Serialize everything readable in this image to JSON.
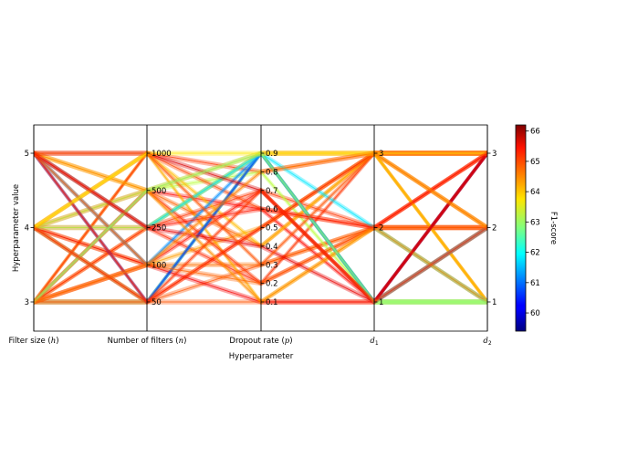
{
  "chart_data": {
    "type": "parallel-coordinates",
    "title": "",
    "xlabel": "Hyperparameter",
    "ylabel": "Hyperparameter value",
    "grid": false,
    "axes": [
      {
        "name": "Filter size (h)",
        "label_main": "Filter size (",
        "label_var": "h",
        "label_end": ")",
        "ticks": [
          "3",
          "4",
          "5"
        ],
        "tick_side": "left"
      },
      {
        "name": "Number of filters (n)",
        "label_main": "Number of filters (",
        "label_var": "n",
        "label_end": ")",
        "ticks": [
          "50",
          "100",
          "250",
          "500",
          "1000"
        ],
        "tick_side": "right"
      },
      {
        "name": "Dropout rate (p)",
        "label_main": "Dropout rate (",
        "label_var": "p",
        "label_end": ")",
        "ticks": [
          "0.1",
          "0.2",
          "0.3",
          "0.4",
          "0.5",
          "0.6",
          "0.7",
          "0.8",
          "0.9"
        ],
        "tick_side": "right"
      },
      {
        "name": "d1",
        "label_main": "",
        "label_var": "d",
        "label_sub": "1",
        "label_end": "",
        "ticks": [
          "1",
          "2",
          "3"
        ],
        "tick_side": "right"
      },
      {
        "name": "d2",
        "label_main": "",
        "label_var": "d",
        "label_sub": "2",
        "label_end": "",
        "ticks": [
          "1",
          "2",
          "3"
        ],
        "tick_side": "right"
      }
    ],
    "colorbar": {
      "label": "F1-score",
      "min": 59.4,
      "max": 66.2,
      "ticks": [
        "60",
        "61",
        "62",
        "63",
        "64",
        "65",
        "66"
      ],
      "colormap": "jet"
    },
    "representative_lines": [
      [
        3,
        50,
        0.1,
        1,
        1,
        64.8
      ],
      [
        3,
        50,
        0.9,
        1,
        1,
        62.8
      ],
      [
        3,
        50,
        0.5,
        3,
        3,
        64.9
      ],
      [
        3,
        100,
        0.3,
        2,
        2,
        64.6
      ],
      [
        3,
        100,
        0.7,
        1,
        3,
        65.2
      ],
      [
        3,
        250,
        0.9,
        3,
        1,
        64.4
      ],
      [
        3,
        250,
        0.2,
        2,
        3,
        65.1
      ],
      [
        3,
        500,
        0.6,
        1,
        2,
        65.3
      ],
      [
        3,
        500,
        0.4,
        3,
        2,
        64.7
      ],
      [
        3,
        1000,
        0.1,
        2,
        1,
        64.2
      ],
      [
        3,
        1000,
        0.8,
        3,
        3,
        65.0
      ],
      [
        4,
        50,
        0.9,
        1,
        1,
        62.6
      ],
      [
        4,
        50,
        0.3,
        2,
        2,
        64.8
      ],
      [
        4,
        100,
        0.5,
        3,
        1,
        64.3
      ],
      [
        4,
        100,
        0.1,
        1,
        3,
        65.4
      ],
      [
        4,
        250,
        0.7,
        2,
        2,
        65.0
      ],
      [
        4,
        250,
        0.9,
        1,
        2,
        63.1
      ],
      [
        4,
        500,
        0.2,
        3,
        3,
        65.0
      ],
      [
        4,
        500,
        0.8,
        1,
        1,
        63.2
      ],
      [
        4,
        1000,
        0.6,
        2,
        3,
        64.9
      ],
      [
        4,
        1000,
        0.4,
        3,
        1,
        64.1
      ],
      [
        5,
        50,
        0.9,
        1,
        3,
        60.6
      ],
      [
        5,
        100,
        0.9,
        1,
        2,
        61.2
      ],
      [
        5,
        250,
        0.9,
        2,
        1,
        61.8
      ],
      [
        5,
        50,
        0.5,
        3,
        3,
        65.1
      ],
      [
        5,
        100,
        0.2,
        2,
        2,
        64.7
      ],
      [
        5,
        250,
        0.4,
        1,
        3,
        65.5
      ],
      [
        5,
        500,
        0.9,
        3,
        2,
        64.2
      ],
      [
        5,
        500,
        0.1,
        2,
        1,
        64.4
      ],
      [
        5,
        1000,
        0.7,
        1,
        3,
        65.6
      ],
      [
        5,
        1000,
        0.3,
        3,
        3,
        64.8
      ],
      [
        3,
        500,
        0.9,
        1,
        1,
        62.9
      ],
      [
        4,
        1000,
        0.9,
        3,
        3,
        63.8
      ],
      [
        5,
        250,
        0.6,
        2,
        3,
        65.2
      ],
      [
        3,
        100,
        0.8,
        3,
        2,
        64.5
      ],
      [
        4,
        50,
        0.7,
        1,
        2,
        65.0
      ]
    ]
  }
}
